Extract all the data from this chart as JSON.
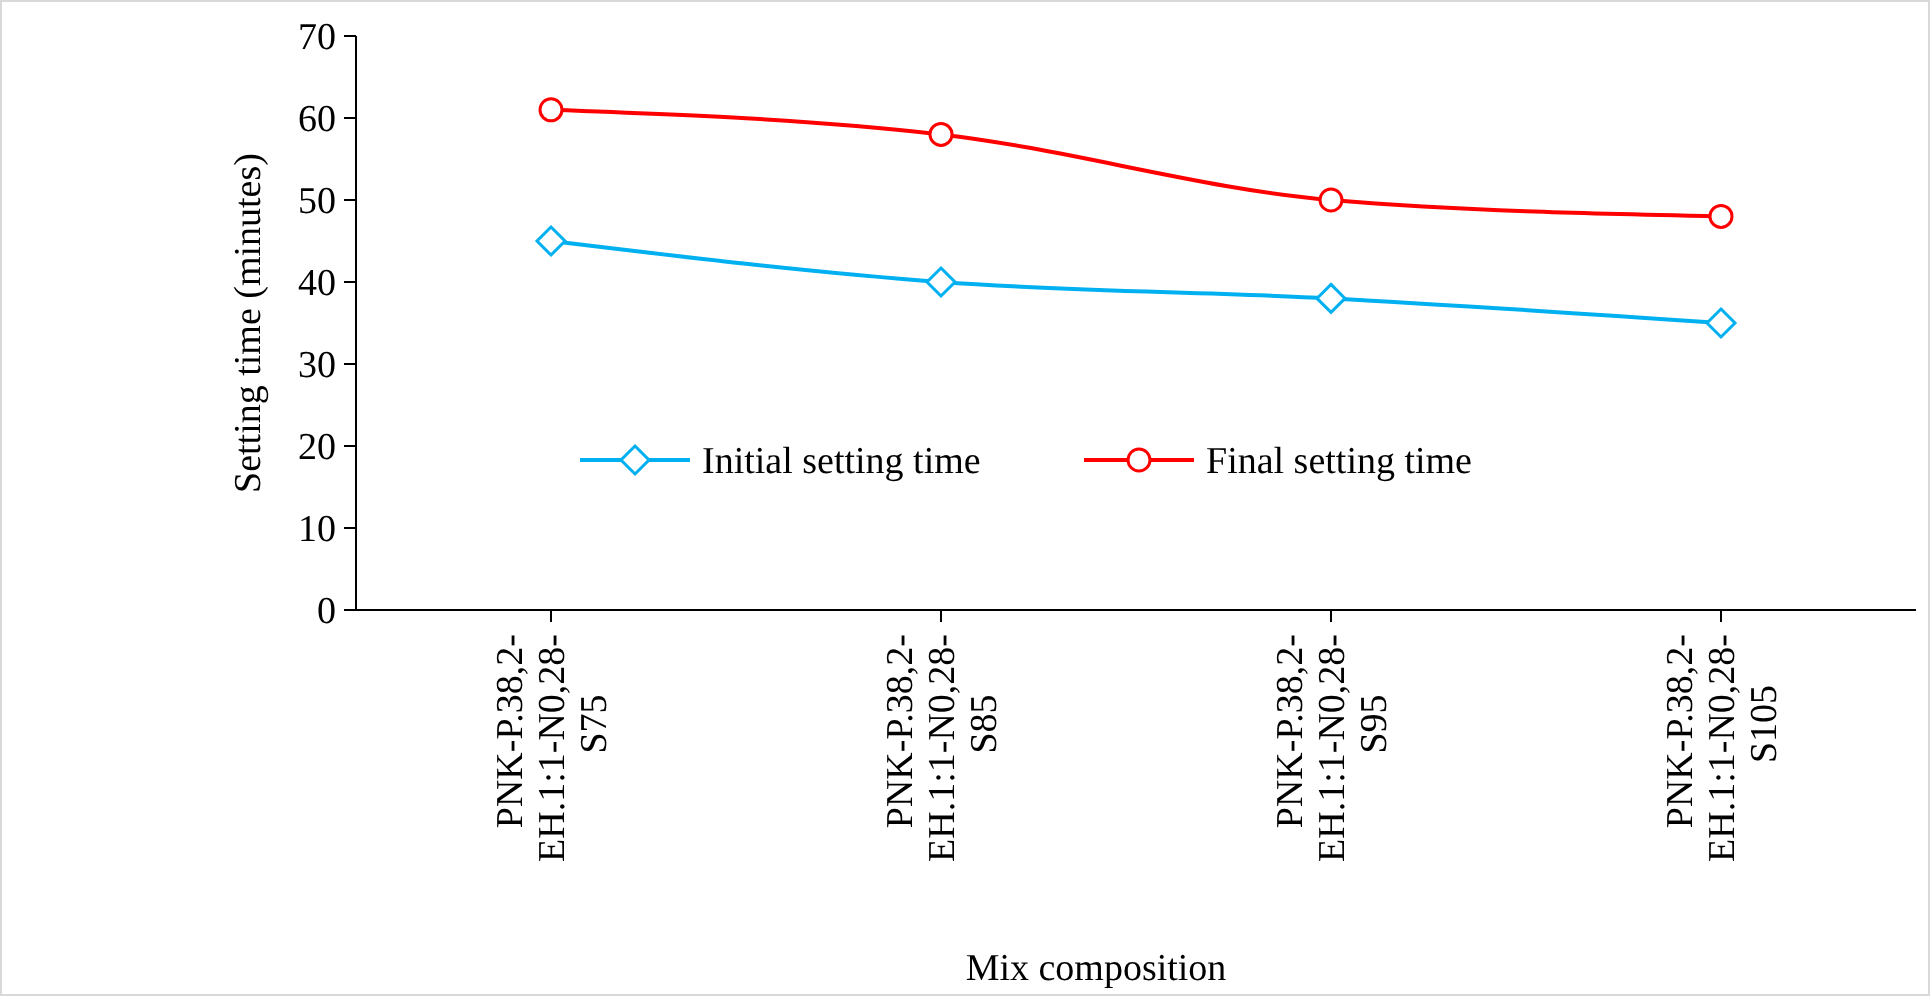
{
  "chart_data": {
    "type": "line",
    "xlabel": "Mix composition",
    "ylabel": "Setting time (minutes)",
    "categories": [
      "PNK-P.38,2-\nEH.1:1-N0,28-\nS75",
      "PNK-P.38,2-\nEH.1:1-N0,28-\nS85",
      "PNK-P.38,2-\nEH.1:1-N0,28-\nS95",
      "PNK-P.38,2-\nEH.1:1-N0,28-\nS105"
    ],
    "series": [
      {
        "name": "Initial setting time",
        "color": "#00b0f0",
        "marker": "diamond",
        "values": [
          45,
          40,
          38,
          35
        ]
      },
      {
        "name": "Final setting time",
        "color": "#ff0000",
        "marker": "circle",
        "values": [
          61,
          58,
          50,
          48
        ]
      }
    ],
    "ylim": [
      0,
      70
    ],
    "yticks": [
      0,
      10,
      20,
      30,
      40,
      50,
      60,
      70
    ],
    "legend": "center",
    "grid": false
  }
}
